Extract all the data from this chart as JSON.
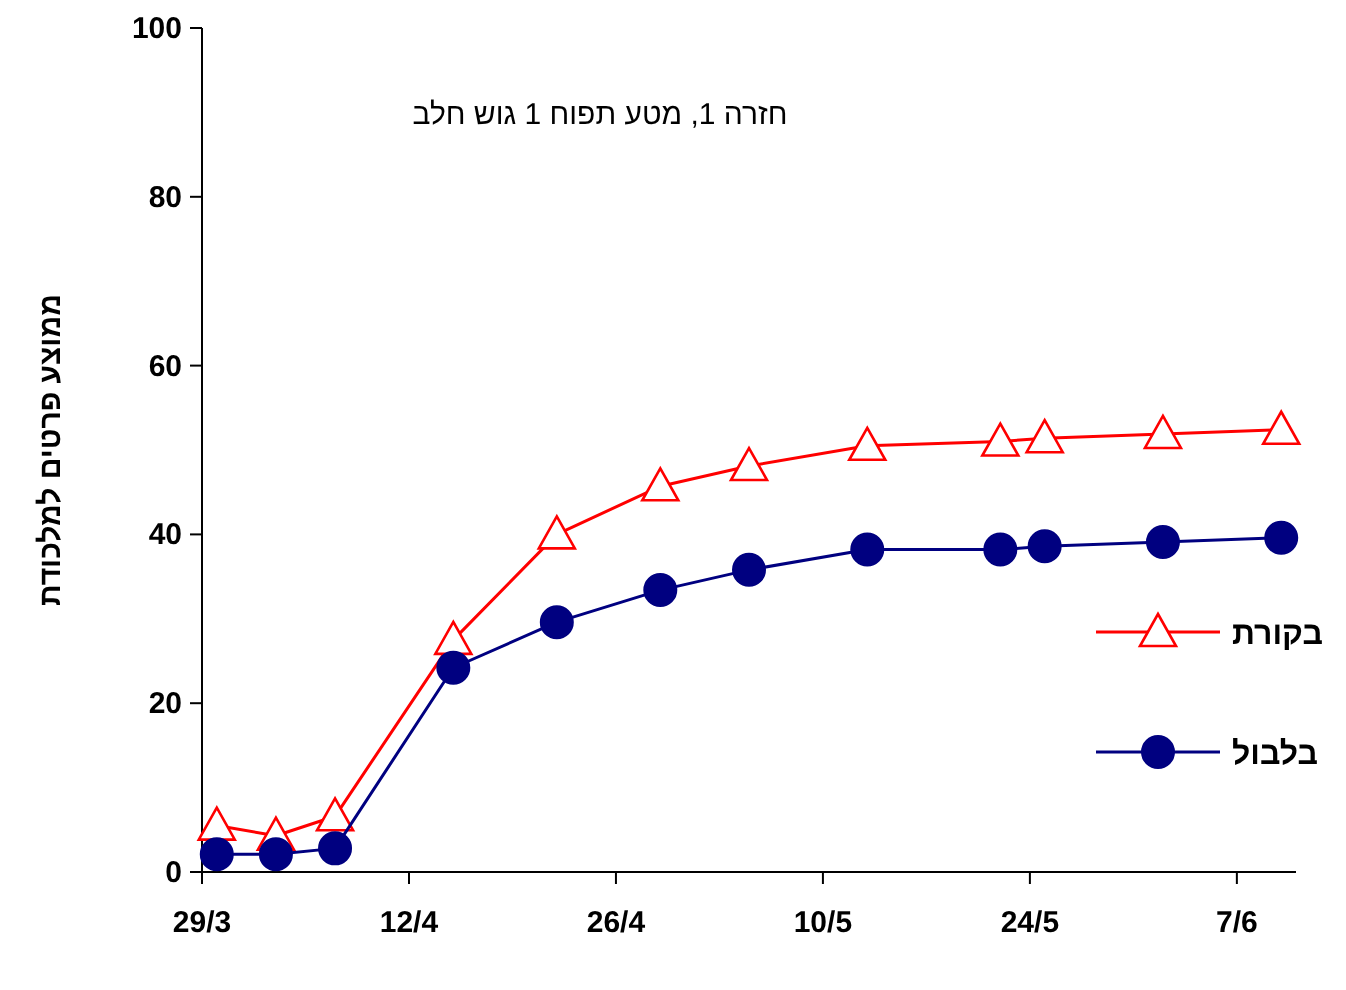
{
  "chart_data": {
    "type": "line",
    "title": "חזרה 1, מטע תפוח 1 גוש חלב",
    "ylabel": "ממוצע פרטים למלכודת",
    "x": [
      "--03-30",
      "--04-03",
      "--04-07",
      "--04-15",
      "--04-22",
      "--04-29",
      "--05-05",
      "--05-13",
      "--05-22",
      "--05-25",
      "--06-02",
      "--06-10"
    ],
    "series": [
      {
        "name": "בקורת",
        "color": "#ff0000",
        "marker": "triangle",
        "values": [
          5.5,
          4.3,
          6.6,
          27.5,
          40,
          45.7,
          48.1,
          50.5,
          51,
          51.4,
          51.9,
          52.4
        ]
      },
      {
        "name": "בלבול",
        "color": "#000080",
        "marker": "circle",
        "values": [
          2.1,
          2.1,
          2.8,
          24.2,
          29.6,
          33.4,
          35.8,
          38.2,
          38.2,
          38.6,
          39.1,
          39.6
        ]
      }
    ],
    "xlim": [
      "--03-29",
      "--06-11"
    ],
    "xticks": [
      {
        "value": "--03-29",
        "label": "29/3"
      },
      {
        "value": "--04-12",
        "label": "12/4"
      },
      {
        "value": "--04-26",
        "label": "26/4"
      },
      {
        "value": "--05-10",
        "label": "10/5"
      },
      {
        "value": "--05-24",
        "label": "24/5"
      },
      {
        "value": "--06-07",
        "label": "7/6"
      }
    ],
    "ylim": [
      0,
      100
    ],
    "yticks": [
      0,
      20,
      40,
      60,
      80,
      100
    ],
    "legend": "right"
  }
}
